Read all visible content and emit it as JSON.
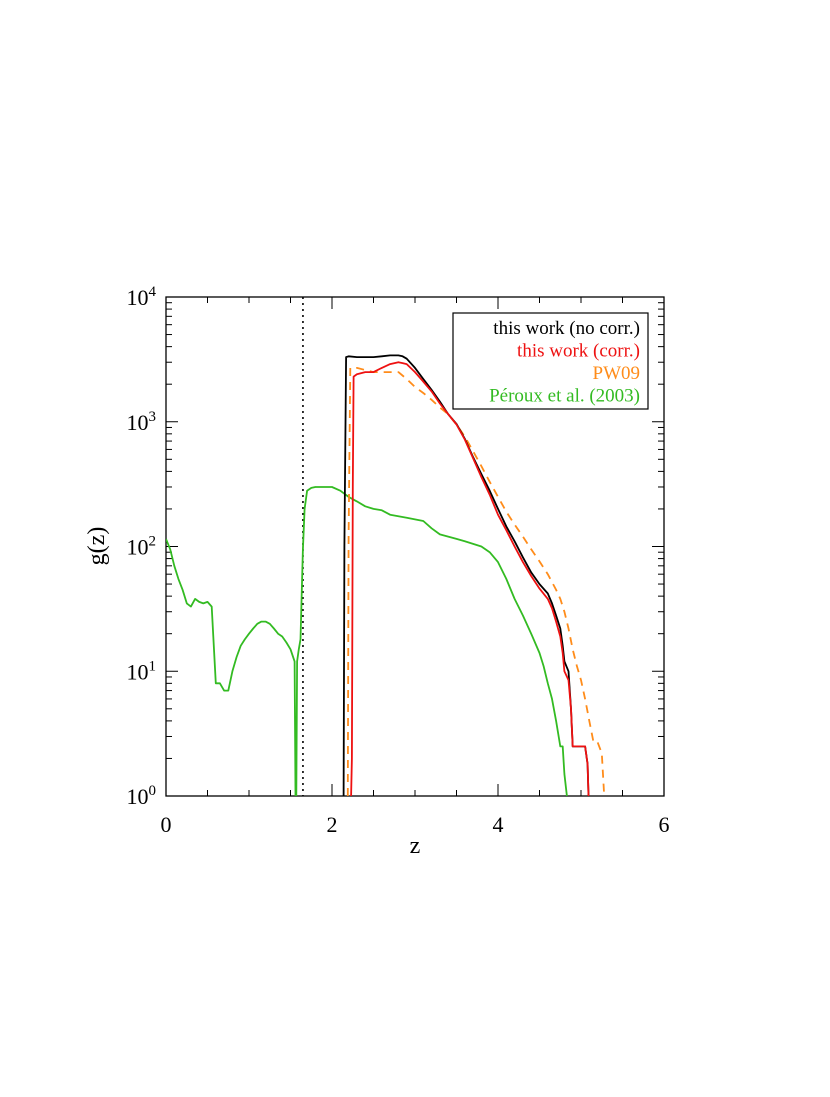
{
  "chart_data": {
    "type": "line",
    "xlabel": "z",
    "ylabel": "g(z)",
    "xlim": [
      0,
      6
    ],
    "ylim": [
      1,
      10000
    ],
    "yscale": "log",
    "x_ticks": [
      {
        "value": 0,
        "label": "0"
      },
      {
        "value": 2,
        "label": "2"
      },
      {
        "value": 4,
        "label": "4"
      },
      {
        "value": 6,
        "label": "6"
      }
    ],
    "y_ticks": [
      {
        "value": 1,
        "base": "10",
        "exp": "0"
      },
      {
        "value": 10,
        "base": "10",
        "exp": "1"
      },
      {
        "value": 100,
        "base": "10",
        "exp": "2"
      },
      {
        "value": 1000,
        "base": "10",
        "exp": "3"
      },
      {
        "value": 10000,
        "base": "10",
        "exp": "4"
      }
    ],
    "legend_position": "top-right",
    "vline": {
      "x": 1.65,
      "style": "dotted",
      "color": "#000000"
    },
    "series": [
      {
        "name": "this work (no corr.)",
        "color": "#000000",
        "dash": "solid",
        "x": [
          2.14,
          2.15,
          2.17,
          2.2,
          2.3,
          2.4,
          2.5,
          2.6,
          2.7,
          2.8,
          2.85,
          2.9,
          3.0,
          3.1,
          3.2,
          3.3,
          3.4,
          3.5,
          3.6,
          3.7,
          3.8,
          3.9,
          4.0,
          4.1,
          4.2,
          4.3,
          4.4,
          4.5,
          4.6,
          4.65,
          4.7,
          4.75,
          4.78,
          4.8,
          4.85,
          4.88,
          4.9,
          4.95,
          5.0,
          5.05,
          5.08,
          5.09
        ],
        "y": [
          1,
          100,
          3300,
          3350,
          3300,
          3300,
          3300,
          3350,
          3400,
          3400,
          3350,
          3200,
          2700,
          2200,
          1800,
          1450,
          1150,
          960,
          730,
          520,
          380,
          280,
          200,
          145,
          110,
          82,
          62,
          50,
          42,
          35,
          28,
          22,
          16,
          12,
          10,
          5,
          2.5,
          2.5,
          2.5,
          2.5,
          1.8,
          1
        ]
      },
      {
        "name": "this work (corr.)",
        "color": "#ee1111",
        "dash": "solid",
        "x": [
          2.23,
          2.24,
          2.25,
          2.26,
          2.3,
          2.4,
          2.5,
          2.6,
          2.7,
          2.8,
          2.85,
          2.9,
          3.0,
          3.1,
          3.2,
          3.3,
          3.4,
          3.5,
          3.6,
          3.7,
          3.8,
          3.9,
          4.0,
          4.1,
          4.2,
          4.3,
          4.4,
          4.5,
          4.6,
          4.65,
          4.7,
          4.75,
          4.78,
          4.8,
          4.85,
          4.88,
          4.9,
          4.95,
          5.0,
          5.05,
          5.08,
          5.09
        ],
        "y": [
          1,
          2,
          300,
          2300,
          2400,
          2500,
          2500,
          2700,
          2900,
          3000,
          2950,
          2900,
          2500,
          2100,
          1750,
          1400,
          1150,
          950,
          720,
          510,
          360,
          260,
          180,
          135,
          100,
          75,
          58,
          46,
          38,
          32,
          25,
          19,
          14,
          10,
          8.5,
          5,
          2.5,
          2.5,
          2.5,
          2.5,
          1.8,
          1
        ]
      },
      {
        "name": "PW09",
        "color": "#ff8c1a",
        "dash": "dashed",
        "x": [
          2.19,
          2.2,
          2.22,
          2.3,
          2.4,
          2.5,
          2.6,
          2.7,
          2.8,
          2.9,
          3.0,
          3.1,
          3.2,
          3.3,
          3.4,
          3.5,
          3.6,
          3.7,
          3.8,
          3.9,
          4.0,
          4.1,
          4.2,
          4.3,
          4.4,
          4.5,
          4.6,
          4.7,
          4.75,
          4.8,
          4.85,
          4.9,
          4.95,
          5.0,
          5.05,
          5.1,
          5.15,
          5.2,
          5.25,
          5.28
        ],
        "y": [
          1,
          120,
          2700,
          2700,
          2600,
          2500,
          2500,
          2500,
          2500,
          2200,
          1900,
          1700,
          1500,
          1300,
          1150,
          950,
          760,
          580,
          440,
          330,
          250,
          190,
          150,
          120,
          95,
          76,
          60,
          45,
          38,
          30,
          22,
          15,
          11,
          8.5,
          6,
          4,
          2.7,
          2.7,
          2.2,
          1
        ]
      },
      {
        "name": "Péroux et al. (2003)",
        "color": "#33bb22",
        "dash": "solid",
        "x": [
          0,
          0.05,
          0.1,
          0.15,
          0.2,
          0.25,
          0.3,
          0.35,
          0.4,
          0.45,
          0.5,
          0.55,
          0.6,
          0.65,
          0.7,
          0.75,
          0.8,
          0.85,
          0.9,
          0.95,
          1.0,
          1.05,
          1.1,
          1.15,
          1.2,
          1.25,
          1.3,
          1.35,
          1.4,
          1.45,
          1.5,
          1.55,
          1.56,
          1.57,
          1.58,
          1.6,
          1.62,
          1.65,
          1.67,
          1.7,
          1.75,
          1.8,
          1.85,
          1.9,
          1.95,
          2.0,
          2.1,
          2.2,
          2.3,
          2.4,
          2.5,
          2.6,
          2.7,
          2.8,
          2.9,
          3.0,
          3.1,
          3.2,
          3.3,
          3.4,
          3.5,
          3.6,
          3.7,
          3.8,
          3.9,
          4.0,
          4.1,
          4.2,
          4.3,
          4.4,
          4.5,
          4.55,
          4.6,
          4.65,
          4.7,
          4.75,
          4.78,
          4.8,
          4.83
        ],
        "y": [
          115,
          95,
          70,
          55,
          45,
          35,
          33,
          38,
          36,
          35,
          36,
          33,
          8,
          8,
          7,
          7,
          10,
          13,
          16,
          18,
          20,
          22,
          24,
          25,
          25,
          24,
          22,
          20,
          19,
          17,
          15,
          12,
          1,
          1,
          12,
          15,
          18,
          95,
          200,
          280,
          295,
          300,
          300,
          300,
          300,
          300,
          280,
          250,
          230,
          210,
          200,
          195,
          180,
          175,
          170,
          165,
          160,
          140,
          125,
          120,
          115,
          110,
          105,
          100,
          90,
          75,
          55,
          38,
          28,
          20,
          14,
          11,
          8,
          6,
          4,
          2.5,
          2.5,
          1.5,
          1
        ]
      }
    ]
  }
}
